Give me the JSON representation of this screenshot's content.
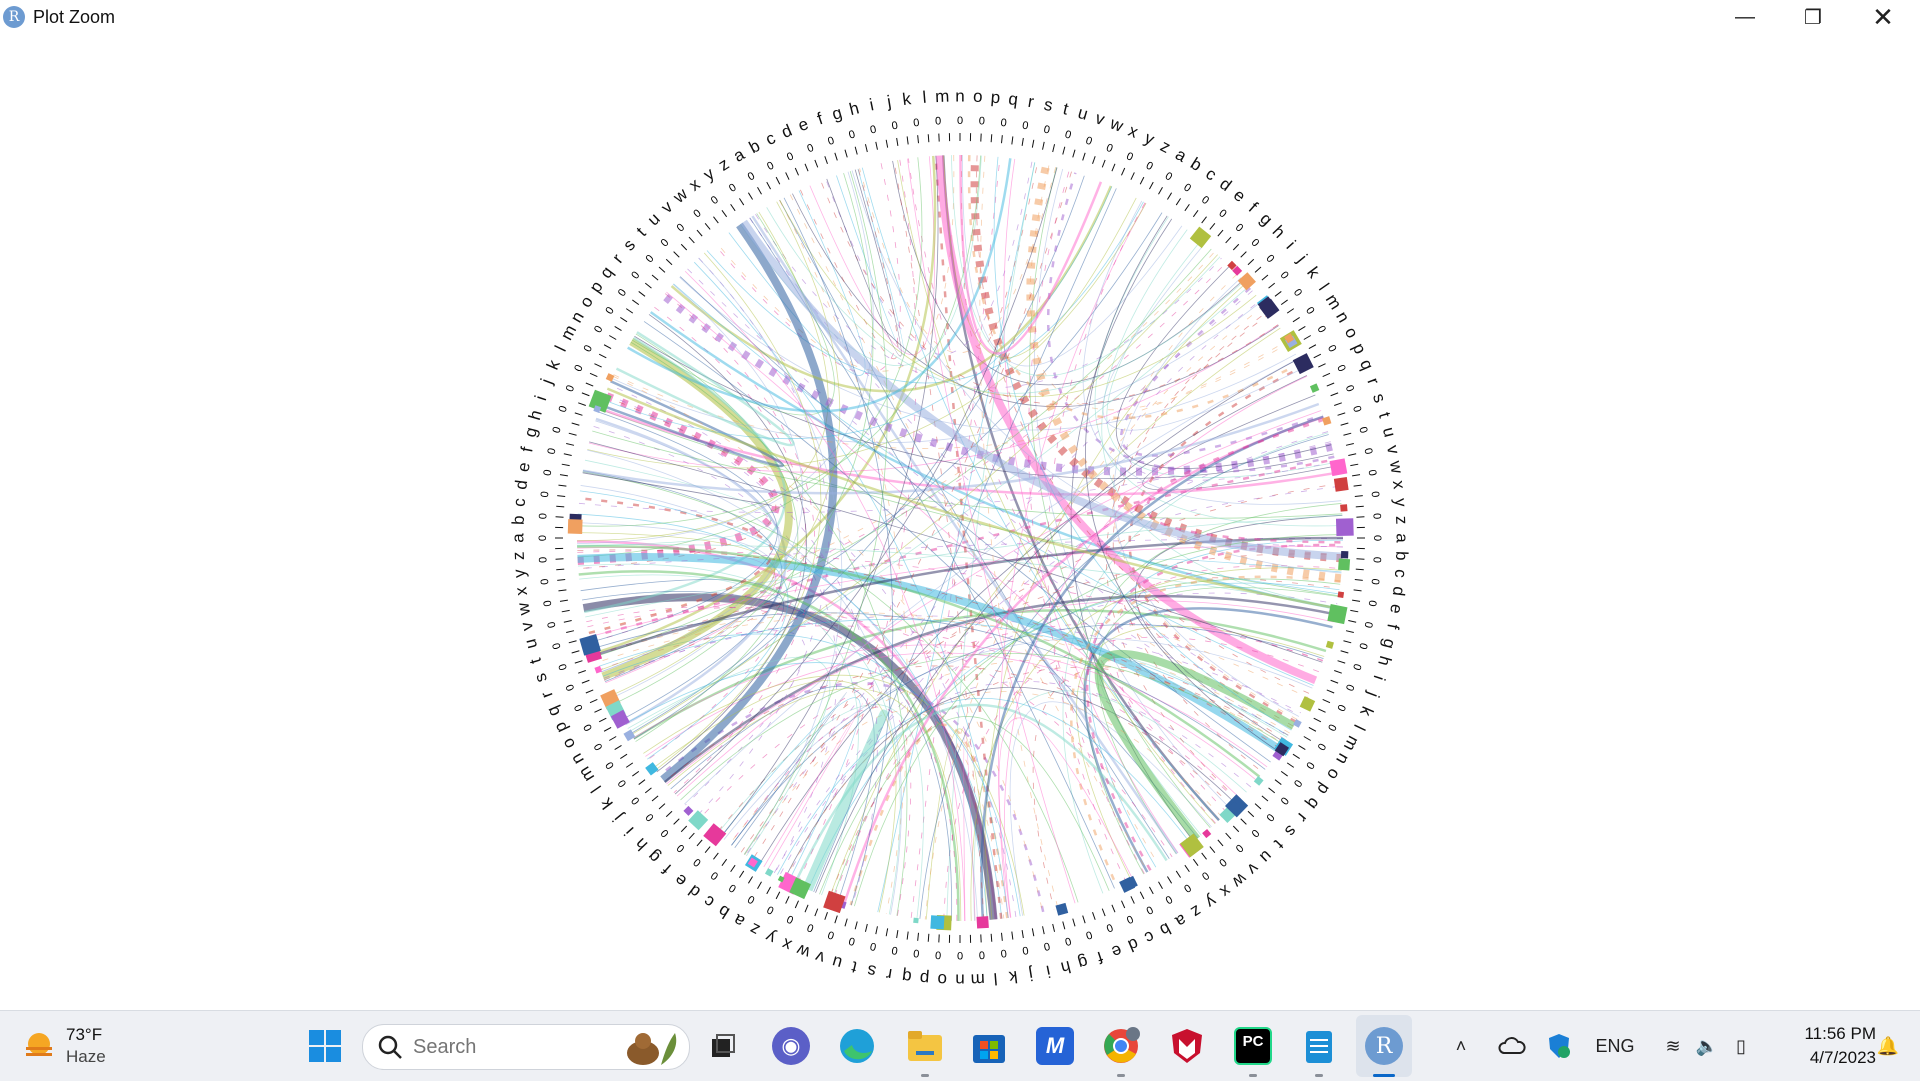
{
  "window": {
    "title": "Plot Zoom",
    "app_letter": "R"
  },
  "taskbar": {
    "weather": {
      "temp": "73°F",
      "condition": "Haze"
    },
    "search_placeholder": "Search",
    "apps": [
      {
        "name": "start",
        "icon": "windows-logo-icon"
      },
      {
        "name": "task-view",
        "icon": "task-view-icon"
      },
      {
        "name": "chat",
        "icon": "chat-icon"
      },
      {
        "name": "edge",
        "icon": "edge-icon"
      },
      {
        "name": "file-explorer",
        "icon": "folder-icon"
      },
      {
        "name": "store",
        "icon": "store-icon"
      },
      {
        "name": "app-m",
        "icon": "m-app-icon"
      },
      {
        "name": "chrome",
        "icon": "chrome-icon"
      },
      {
        "name": "mcafee",
        "icon": "shield-m-icon"
      },
      {
        "name": "pycharm",
        "icon": "pycharm-icon",
        "label": "PC"
      },
      {
        "name": "notepad",
        "icon": "notepad-icon"
      },
      {
        "name": "r-gui",
        "icon": "r-icon",
        "label": "R"
      }
    ],
    "tray": {
      "language": "ENG",
      "time": "11:56 PM",
      "date": "4/7/2023"
    }
  },
  "chart_data": {
    "type": "chord",
    "title": "",
    "sectors": [
      "a",
      "b",
      "c",
      "d",
      "e",
      "f",
      "g",
      "h",
      "i",
      "j",
      "k",
      "l",
      "m",
      "n",
      "o",
      "p",
      "q",
      "r",
      "s",
      "t",
      "u",
      "v",
      "w",
      "x",
      "y",
      "z"
    ],
    "tick_label": "0",
    "colors": [
      "#e6399b",
      "#7fd8c8",
      "#9ab0e0",
      "#f0a060",
      "#60c060",
      "#40b8e0",
      "#a060d0",
      "#ff66cc",
      "#3060a0",
      "#d04040",
      "#b0c040",
      "#2c2c60"
    ]
  }
}
